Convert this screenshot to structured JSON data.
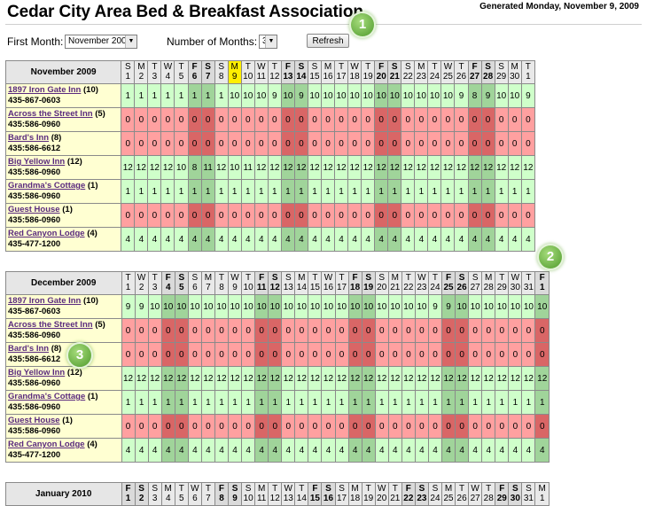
{
  "header": {
    "title": "Cedar City Area Bed & Breakfast Association",
    "generated": "Generated Monday, November 9, 2009"
  },
  "controls": {
    "first_month_label": "First Month:",
    "first_month_value": "November 2009",
    "num_months_label": "Number of Months:",
    "num_months_value": "3",
    "refresh_label": "Refresh"
  },
  "badges": [
    "1",
    "2",
    "3"
  ],
  "months": [
    {
      "name": "November 2009",
      "days": [
        {
          "dow": "S",
          "date": "1"
        },
        {
          "dow": "M",
          "date": "2"
        },
        {
          "dow": "T",
          "date": "3"
        },
        {
          "dow": "W",
          "date": "4"
        },
        {
          "dow": "T",
          "date": "5"
        },
        {
          "dow": "F",
          "date": "6",
          "we": true
        },
        {
          "dow": "S",
          "date": "7",
          "we": true
        },
        {
          "dow": "S",
          "date": "8"
        },
        {
          "dow": "M",
          "date": "9",
          "today": true
        },
        {
          "dow": "T",
          "date": "10"
        },
        {
          "dow": "W",
          "date": "11"
        },
        {
          "dow": "T",
          "date": "12"
        },
        {
          "dow": "F",
          "date": "13",
          "we": true
        },
        {
          "dow": "S",
          "date": "14",
          "we": true
        },
        {
          "dow": "S",
          "date": "15"
        },
        {
          "dow": "M",
          "date": "16"
        },
        {
          "dow": "T",
          "date": "17"
        },
        {
          "dow": "W",
          "date": "18"
        },
        {
          "dow": "T",
          "date": "19"
        },
        {
          "dow": "F",
          "date": "20",
          "we": true
        },
        {
          "dow": "S",
          "date": "21",
          "we": true
        },
        {
          "dow": "S",
          "date": "22"
        },
        {
          "dow": "M",
          "date": "23"
        },
        {
          "dow": "T",
          "date": "24"
        },
        {
          "dow": "W",
          "date": "25"
        },
        {
          "dow": "T",
          "date": "26"
        },
        {
          "dow": "F",
          "date": "27",
          "we": true
        },
        {
          "dow": "S",
          "date": "28",
          "we": true
        },
        {
          "dow": "S",
          "date": "29"
        },
        {
          "dow": "M",
          "date": "30"
        },
        {
          "dow": "T",
          "date": "1"
        }
      ],
      "inns": [
        {
          "name": "1897 Iron Gate Inn",
          "count": "(10)",
          "phone": "435-867-0603",
          "values": [
            1,
            1,
            1,
            1,
            1,
            1,
            1,
            1,
            10,
            10,
            10,
            9,
            10,
            9,
            10,
            10,
            10,
            10,
            10,
            10,
            10,
            10,
            10,
            10,
            10,
            9,
            8,
            9,
            10,
            10,
            9
          ]
        },
        {
          "name": "Across the Street Inn",
          "count": "(5)",
          "phone": "435:586-0960",
          "values": [
            0,
            0,
            0,
            0,
            0,
            0,
            0,
            0,
            0,
            0,
            0,
            0,
            0,
            0,
            0,
            0,
            0,
            0,
            0,
            0,
            0,
            0,
            0,
            0,
            0,
            0,
            0,
            0,
            0,
            0,
            0
          ]
        },
        {
          "name": "Bard's Inn",
          "count": "(8)",
          "phone": "435:586-6612",
          "values": [
            0,
            0,
            0,
            0,
            0,
            0,
            0,
            0,
            0,
            0,
            0,
            0,
            0,
            0,
            0,
            0,
            0,
            0,
            0,
            0,
            0,
            0,
            0,
            0,
            0,
            0,
            0,
            0,
            0,
            0,
            0
          ]
        },
        {
          "name": "Big Yellow Inn",
          "count": "(12)",
          "phone": "435:586-0960",
          "values": [
            12,
            12,
            12,
            12,
            10,
            8,
            11,
            12,
            10,
            11,
            12,
            12,
            12,
            12,
            12,
            12,
            12,
            12,
            12,
            12,
            12,
            12,
            12,
            12,
            12,
            12,
            12,
            12,
            12,
            12,
            12
          ]
        },
        {
          "name": "Grandma's Cottage",
          "count": "(1)",
          "phone": "435:586-0960",
          "values": [
            1,
            1,
            1,
            1,
            1,
            1,
            1,
            1,
            1,
            1,
            1,
            1,
            1,
            1,
            1,
            1,
            1,
            1,
            1,
            1,
            1,
            1,
            1,
            1,
            1,
            1,
            1,
            1,
            1,
            1,
            1
          ]
        },
        {
          "name": "Guest House",
          "count": "(1)",
          "phone": "435:586-0960",
          "values": [
            0,
            0,
            0,
            0,
            0,
            0,
            0,
            0,
            0,
            0,
            0,
            0,
            0,
            0,
            0,
            0,
            0,
            0,
            0,
            0,
            0,
            0,
            0,
            0,
            0,
            0,
            0,
            0,
            0,
            0,
            0
          ]
        },
        {
          "name": "Red Canyon Lodge",
          "count": "(4)",
          "phone": "435-477-1200",
          "values": [
            4,
            4,
            4,
            4,
            4,
            4,
            4,
            4,
            4,
            4,
            4,
            4,
            4,
            4,
            4,
            4,
            4,
            4,
            4,
            4,
            4,
            4,
            4,
            4,
            4,
            4,
            4,
            4,
            4,
            4,
            4
          ]
        }
      ]
    },
    {
      "name": "December 2009",
      "days": [
        {
          "dow": "T",
          "date": "1"
        },
        {
          "dow": "W",
          "date": "2"
        },
        {
          "dow": "T",
          "date": "3"
        },
        {
          "dow": "F",
          "date": "4",
          "we": true
        },
        {
          "dow": "S",
          "date": "5",
          "we": true
        },
        {
          "dow": "S",
          "date": "6"
        },
        {
          "dow": "M",
          "date": "7"
        },
        {
          "dow": "T",
          "date": "8"
        },
        {
          "dow": "W",
          "date": "9"
        },
        {
          "dow": "T",
          "date": "10"
        },
        {
          "dow": "F",
          "date": "11",
          "we": true
        },
        {
          "dow": "S",
          "date": "12",
          "we": true
        },
        {
          "dow": "S",
          "date": "13"
        },
        {
          "dow": "M",
          "date": "14"
        },
        {
          "dow": "T",
          "date": "15"
        },
        {
          "dow": "W",
          "date": "16"
        },
        {
          "dow": "T",
          "date": "17"
        },
        {
          "dow": "F",
          "date": "18",
          "we": true
        },
        {
          "dow": "S",
          "date": "19",
          "we": true
        },
        {
          "dow": "S",
          "date": "20"
        },
        {
          "dow": "M",
          "date": "21"
        },
        {
          "dow": "T",
          "date": "22"
        },
        {
          "dow": "W",
          "date": "23"
        },
        {
          "dow": "T",
          "date": "24"
        },
        {
          "dow": "F",
          "date": "25",
          "we": true
        },
        {
          "dow": "S",
          "date": "26",
          "we": true
        },
        {
          "dow": "S",
          "date": "27"
        },
        {
          "dow": "M",
          "date": "28"
        },
        {
          "dow": "T",
          "date": "29"
        },
        {
          "dow": "W",
          "date": "30"
        },
        {
          "dow": "T",
          "date": "31"
        },
        {
          "dow": "F",
          "date": "1",
          "we": true
        }
      ],
      "inns": [
        {
          "name": "1897 Iron Gate Inn",
          "count": "(10)",
          "phone": "435-867-0603",
          "values": [
            9,
            9,
            10,
            10,
            10,
            10,
            10,
            10,
            10,
            10,
            10,
            10,
            10,
            10,
            10,
            10,
            10,
            10,
            10,
            10,
            10,
            10,
            10,
            9,
            9,
            10,
            10,
            10,
            10,
            10,
            10,
            10
          ]
        },
        {
          "name": "Across the Street Inn",
          "count": "(5)",
          "phone": "435:586-0960",
          "values": [
            0,
            0,
            0,
            0,
            0,
            0,
            0,
            0,
            0,
            0,
            0,
            0,
            0,
            0,
            0,
            0,
            0,
            0,
            0,
            0,
            0,
            0,
            0,
            0,
            0,
            0,
            0,
            0,
            0,
            0,
            0,
            0
          ]
        },
        {
          "name": "Bard's Inn",
          "count": "(8)",
          "phone": "435:586-6612",
          "values": [
            0,
            0,
            0,
            0,
            0,
            0,
            0,
            0,
            0,
            0,
            0,
            0,
            0,
            0,
            0,
            0,
            0,
            0,
            0,
            0,
            0,
            0,
            0,
            0,
            0,
            0,
            0,
            0,
            0,
            0,
            0,
            0
          ]
        },
        {
          "name": "Big Yellow Inn",
          "count": "(12)",
          "phone": "435:586-0960",
          "values": [
            12,
            12,
            12,
            12,
            12,
            12,
            12,
            12,
            12,
            12,
            12,
            12,
            12,
            12,
            12,
            12,
            12,
            12,
            12,
            12,
            12,
            12,
            12,
            12,
            12,
            12,
            12,
            12,
            12,
            12,
            12,
            12
          ]
        },
        {
          "name": "Grandma's Cottage",
          "count": "(1)",
          "phone": "435:586-0960",
          "values": [
            1,
            1,
            1,
            1,
            1,
            1,
            1,
            1,
            1,
            1,
            1,
            1,
            1,
            1,
            1,
            1,
            1,
            1,
            1,
            1,
            1,
            1,
            1,
            1,
            1,
            1,
            1,
            1,
            1,
            1,
            1,
            1
          ]
        },
        {
          "name": "Guest House",
          "count": "(1)",
          "phone": "435:586-0960",
          "values": [
            0,
            0,
            0,
            0,
            0,
            0,
            0,
            0,
            0,
            0,
            0,
            0,
            0,
            0,
            0,
            0,
            0,
            0,
            0,
            0,
            0,
            0,
            0,
            0,
            0,
            0,
            0,
            0,
            0,
            0,
            0,
            0
          ]
        },
        {
          "name": "Red Canyon Lodge",
          "count": "(4)",
          "phone": "435-477-1200",
          "values": [
            4,
            4,
            4,
            4,
            4,
            4,
            4,
            4,
            4,
            4,
            4,
            4,
            4,
            4,
            4,
            4,
            4,
            4,
            4,
            4,
            4,
            4,
            4,
            4,
            4,
            4,
            4,
            4,
            4,
            4,
            4,
            4
          ]
        }
      ]
    },
    {
      "name": "January 2010",
      "days": [
        {
          "dow": "F",
          "date": "1",
          "we": true
        },
        {
          "dow": "S",
          "date": "2",
          "we": true
        },
        {
          "dow": "S",
          "date": "3"
        },
        {
          "dow": "M",
          "date": "4"
        },
        {
          "dow": "T",
          "date": "5"
        },
        {
          "dow": "W",
          "date": "6"
        },
        {
          "dow": "T",
          "date": "7"
        },
        {
          "dow": "F",
          "date": "8",
          "we": true
        },
        {
          "dow": "S",
          "date": "9",
          "we": true
        },
        {
          "dow": "S",
          "date": "10"
        },
        {
          "dow": "M",
          "date": "11"
        },
        {
          "dow": "T",
          "date": "12"
        },
        {
          "dow": "W",
          "date": "13"
        },
        {
          "dow": "T",
          "date": "14"
        },
        {
          "dow": "F",
          "date": "15",
          "we": true
        },
        {
          "dow": "S",
          "date": "16",
          "we": true
        },
        {
          "dow": "S",
          "date": "17"
        },
        {
          "dow": "M",
          "date": "18"
        },
        {
          "dow": "T",
          "date": "19"
        },
        {
          "dow": "W",
          "date": "20"
        },
        {
          "dow": "T",
          "date": "21"
        },
        {
          "dow": "F",
          "date": "22",
          "we": true
        },
        {
          "dow": "S",
          "date": "23",
          "we": true
        },
        {
          "dow": "S",
          "date": "24"
        },
        {
          "dow": "M",
          "date": "25"
        },
        {
          "dow": "T",
          "date": "26"
        },
        {
          "dow": "W",
          "date": "27"
        },
        {
          "dow": "T",
          "date": "28"
        },
        {
          "dow": "F",
          "date": "29",
          "we": true
        },
        {
          "dow": "S",
          "date": "30",
          "we": true
        },
        {
          "dow": "S",
          "date": "31"
        },
        {
          "dow": "M",
          "date": "1"
        }
      ],
      "inns": []
    }
  ]
}
